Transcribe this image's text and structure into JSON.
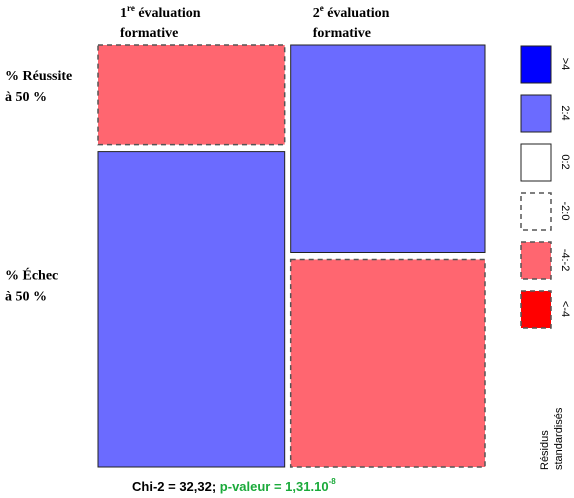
{
  "chart_data": {
    "type": "mosaic",
    "columns": [
      {
        "number": "1",
        "sup": "re",
        "text": " évaluation",
        "line2": "formative",
        "share": 49,
        "values": [
          24,
          76
        ],
        "colors": [
          "#ff6670",
          "#6b6bff"
        ],
        "dashed": [
          true,
          false
        ]
      },
      {
        "number": "2",
        "sup": "e",
        "text": " évaluation",
        "line2": "formative",
        "share": 51,
        "values": [
          50,
          50
        ],
        "colors": [
          "#6b6bff",
          "#ff6670"
        ],
        "dashed": [
          false,
          true
        ]
      }
    ],
    "rows": [
      {
        "line1": "% Réussite",
        "line2": "à 50 %"
      },
      {
        "line1": "% Échec",
        "line2": "à 50 %"
      }
    ],
    "legend": {
      "title": [
        "Résidus",
        "standardisés"
      ],
      "entries": [
        {
          "label": ">4",
          "color": "#0000ff",
          "dashed": false
        },
        {
          "label": "2:4",
          "color": "#6b6bff",
          "dashed": false
        },
        {
          "label": "0:2",
          "color": "#ffffff",
          "dashed": false
        },
        {
          "label": "-2:0",
          "color": "#ffffff",
          "dashed": true
        },
        {
          "label": "-4:-2",
          "color": "#ff6670",
          "dashed": true
        },
        {
          "label": "<-4",
          "color": "#ff0000",
          "dashed": true
        }
      ]
    },
    "footer": {
      "chi": "Chi-2 = 32,32;",
      "p": " p-valeur = 1,31.10",
      "p_exp": "-8",
      "p_color": "#1aaa3a"
    }
  }
}
